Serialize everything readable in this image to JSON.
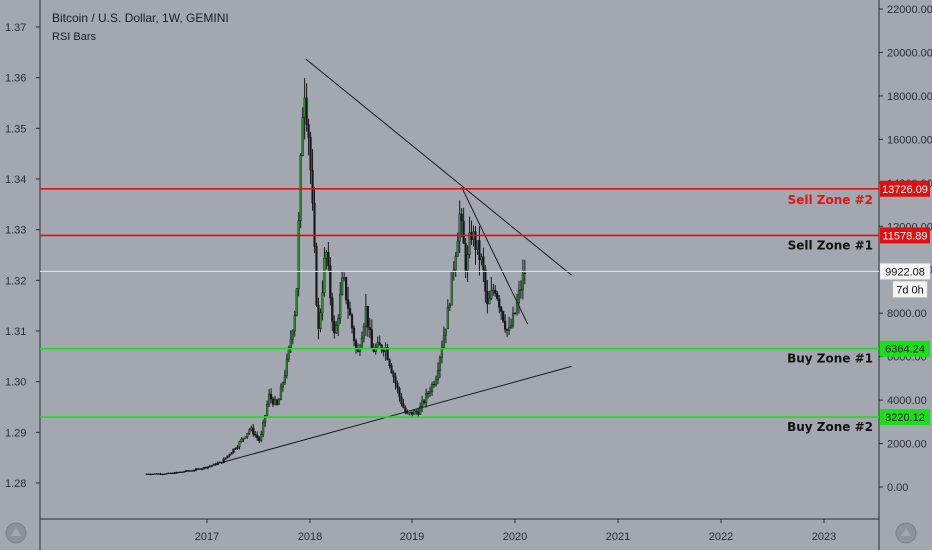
{
  "header": {
    "title": "Bitcoin / U.S. Dollar, 1W, GEMINI",
    "indicator": "RSI Bars"
  },
  "colors": {
    "background": "#a3a7b0",
    "candle": "#15171c",
    "candle_up": "#2e8b2e",
    "sell_zone": "#e01010",
    "buy_zone": "#19e019",
    "current_price_line": "#e8e8e8",
    "trendline": "#1a1a1a",
    "sell_zone_text": "#e01515",
    "buy_zone_text": "#111111"
  },
  "chart_data": {
    "type": "candlestick",
    "left_axis": {
      "ticks": [
        "1.28",
        "1.29",
        "1.30",
        "1.31",
        "1.32",
        "1.33",
        "1.34",
        "1.35",
        "1.36",
        "1.37"
      ]
    },
    "right_axis": {
      "ylim": [
        -1100,
        22700
      ],
      "ticks": [
        "0.00",
        "2000.00",
        "4000.00",
        "6000.00",
        "8000.00",
        "10000.00",
        "12000.00",
        "14000.00",
        "16000.00",
        "18000.00",
        "20000.00",
        "22000.00"
      ]
    },
    "x_axis": {
      "ticks": [
        "2017",
        "2018",
        "2019",
        "2020",
        "2021",
        "2022",
        "2023"
      ]
    },
    "horizontal_levels": [
      {
        "name": "Sell Zone #2",
        "value": 13726.09,
        "label": "13726.09",
        "kind": "sell"
      },
      {
        "name": "Sell Zone #1",
        "value": 11578.89,
        "label": "11578.89",
        "kind": "sell"
      },
      {
        "name": "Buy Zone #1",
        "value": 6364.24,
        "label": "6364.24",
        "kind": "buy"
      },
      {
        "name": "Buy Zone #2",
        "value": 3220.12,
        "label": "3220.12",
        "kind": "buy"
      }
    ],
    "current_price": {
      "value": 9922.08,
      "label": "9922.08",
      "countdown": "7d 0h"
    },
    "trendlines": [
      {
        "name": "long-term-resistance",
        "from": [
          "2017-12-17",
          19700
        ],
        "to": [
          "2020-07-20",
          9750
        ]
      },
      {
        "name": "mid-term-resistance",
        "from": [
          "2019-06-26",
          13800
        ],
        "to": [
          "2020-02-15",
          7500
        ]
      },
      {
        "name": "support",
        "from": [
          "2017-03-01",
          1150
        ],
        "to": [
          "2020-07-20",
          5550
        ]
      }
    ],
    "price_path": [
      [
        "2016-06-01",
        600
      ],
      [
        "2016-09-01",
        620
      ],
      [
        "2016-12-01",
        800
      ],
      [
        "2017-01-15",
        950
      ],
      [
        "2017-03-01",
        1150
      ],
      [
        "2017-05-01",
        2000
      ],
      [
        "2017-06-10",
        2700
      ],
      [
        "2017-07-15",
        2100
      ],
      [
        "2017-08-15",
        4200
      ],
      [
        "2017-09-15",
        3700
      ],
      [
        "2017-10-20",
        5800
      ],
      [
        "2017-11-20",
        8500
      ],
      [
        "2017-12-17",
        19000
      ],
      [
        "2018-01-05",
        16000
      ],
      [
        "2018-02-06",
        7000
      ],
      [
        "2018-03-05",
        11000
      ],
      [
        "2018-04-05",
        6800
      ],
      [
        "2018-05-05",
        9600
      ],
      [
        "2018-06-25",
        6000
      ],
      [
        "2018-07-25",
        8200
      ],
      [
        "2018-08-15",
        6300
      ],
      [
        "2018-10-01",
        6500
      ],
      [
        "2018-11-20",
        4200
      ],
      [
        "2018-12-15",
        3300
      ],
      [
        "2019-02-01",
        3500
      ],
      [
        "2019-04-01",
        5000
      ],
      [
        "2019-05-15",
        8000
      ],
      [
        "2019-06-26",
        12500
      ],
      [
        "2019-07-20",
        10000
      ],
      [
        "2019-08-05",
        11800
      ],
      [
        "2019-09-15",
        10200
      ],
      [
        "2019-10-01",
        8200
      ],
      [
        "2019-10-28",
        9300
      ],
      [
        "2019-12-15",
        7000
      ],
      [
        "2020-01-10",
        8100
      ],
      [
        "2020-02-10",
        9922
      ]
    ],
    "zone_labels": [
      {
        "text": "Sell Zone #2",
        "kind": "sell"
      },
      {
        "text": "Sell Zone #1",
        "kind": "buy"
      },
      {
        "text": "Buy Zone #1",
        "kind": "buy"
      },
      {
        "text": "Buy Zone #2",
        "kind": "buy"
      }
    ]
  }
}
